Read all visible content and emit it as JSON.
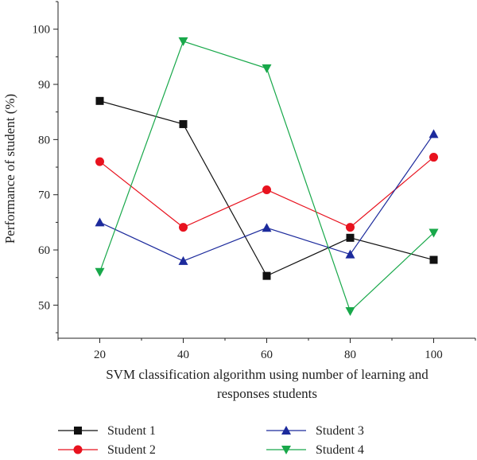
{
  "chart_data": {
    "type": "line",
    "title": "",
    "xlabel": [
      "SVM classification algorithm using number of learning and",
      "responses students"
    ],
    "ylabel": "Performance of student (%)",
    "x": [
      20,
      40,
      60,
      80,
      100
    ],
    "xlim": [
      10,
      110
    ],
    "ylim": [
      44,
      105
    ],
    "xticks": [
      20,
      40,
      60,
      80,
      100
    ],
    "yticks": [
      50,
      60,
      70,
      80,
      90,
      100
    ],
    "grid": false,
    "legend_position": "bottom",
    "series": [
      {
        "name": "Student 1",
        "values": [
          87,
          82.8,
          55.3,
          62.2,
          58.2
        ],
        "color": "#111111",
        "marker": "square"
      },
      {
        "name": "Student 2",
        "values": [
          76,
          64.1,
          70.9,
          64.1,
          76.8
        ],
        "color": "#e8121e",
        "marker": "circle"
      },
      {
        "name": "Student 3",
        "values": [
          65,
          58,
          64,
          59.2,
          81
        ],
        "color": "#1c2a9c",
        "marker": "triangle-up"
      },
      {
        "name": "Student 4",
        "values": [
          56,
          97.8,
          92.9,
          48.9,
          63.1
        ],
        "color": "#18a84a",
        "marker": "triangle-down"
      }
    ]
  }
}
